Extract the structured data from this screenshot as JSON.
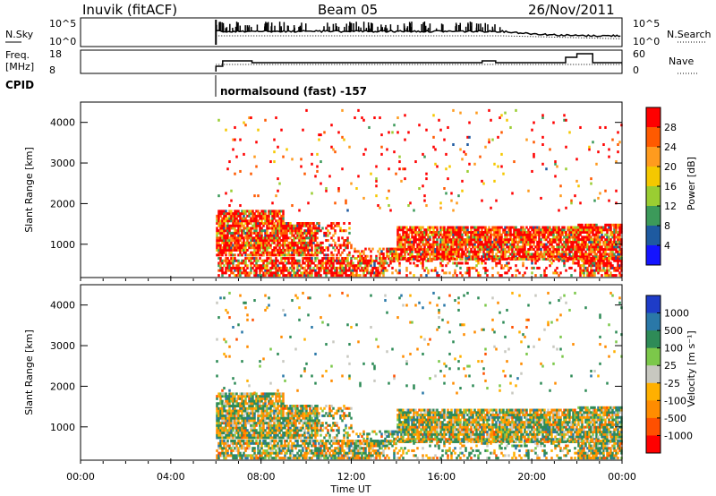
{
  "header": {
    "station": "Inuvik (fitACF)",
    "beam": "Beam 05",
    "date": "26/Nov/2011"
  },
  "noise_panel": {
    "left_label": "N.Sky",
    "right_label": "N.Search",
    "left_ticks": [
      "10^5",
      "10^0"
    ],
    "right_ticks": [
      "10^5",
      "10^0"
    ]
  },
  "freq_panel": {
    "left_label_1": "Freq.",
    "left_label_2": "[MHz]",
    "right_label": "Nave",
    "left_ticks": [
      "18",
      "8"
    ],
    "right_ticks": [
      "60",
      "0"
    ]
  },
  "cpid": {
    "label": "CPID",
    "mode_text": "normalsound (fast) -157"
  },
  "chart_data": [
    {
      "type": "heatmap",
      "name": "power",
      "ylabel": "Slant Range [km]",
      "ylim": [
        180,
        4500
      ],
      "yticks": [
        "4000",
        "3000",
        "2000",
        "1000"
      ],
      "xlim": [
        0,
        24
      ],
      "colorbar_label": "Power [dB]",
      "colorbar_ticks": [
        "28",
        "24",
        "20",
        "16",
        "12",
        "8",
        "4"
      ],
      "colorbar_colors": [
        "#ff0000",
        "#ff5a00",
        "#ff9b1e",
        "#f5c800",
        "#9acd32",
        "#3c9a5a",
        "#1e5aa0",
        "#1414ff"
      ],
      "data_start_hour": 6.0
    },
    {
      "type": "heatmap",
      "name": "velocity",
      "ylabel": "Slant Range [km]",
      "ylim": [
        180,
        4500
      ],
      "yticks": [
        "4000",
        "3000",
        "2000",
        "1000"
      ],
      "xlim": [
        0,
        24
      ],
      "colorbar_label": "Velocity [m s⁻¹]",
      "colorbar_ticks": [
        "1000",
        "500",
        "100",
        "25",
        "-25",
        "-100",
        "-500",
        "-1000"
      ],
      "colorbar_colors": [
        "#1e3cc8",
        "#2a78a8",
        "#2e8b57",
        "#7cc84a",
        "#c8c8c0",
        "#ffb000",
        "#ff8c00",
        "#ff5000",
        "#ff0000"
      ],
      "data_start_hour": 6.0
    }
  ],
  "time_axis": {
    "xlabel": "Time UT",
    "ticks": [
      "00:00",
      "04:00",
      "08:00",
      "12:00",
      "16:00",
      "20:00",
      "00:00"
    ]
  }
}
